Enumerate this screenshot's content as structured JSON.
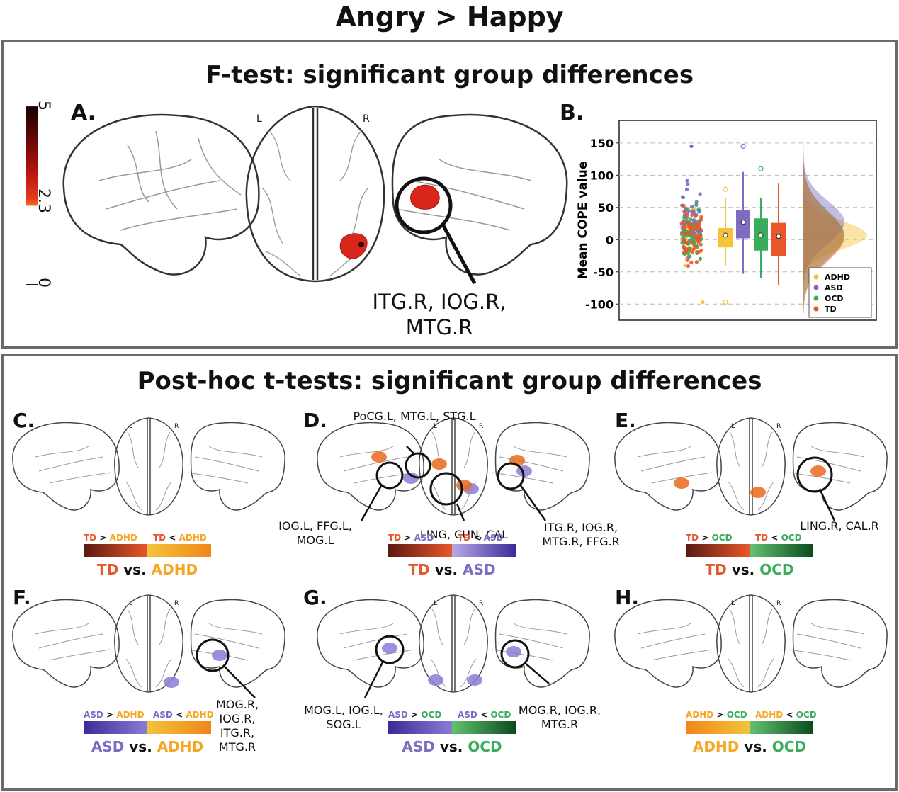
{
  "main_title": "Angry > Happy",
  "top_panel": {
    "title": "F-test: significant group differences",
    "letter_a": "A.",
    "letter_b": "B.",
    "colorbar_ticks": [
      "5",
      "2.3",
      "0"
    ],
    "hemi_left": "L",
    "hemi_right": "R",
    "region_label": [
      "ITG.R, IOG.R,",
      "MTG.R"
    ]
  },
  "chart_data": {
    "type": "scatter",
    "ylabel": "Mean COPE value",
    "yticks": [
      150,
      100,
      50,
      0,
      -50,
      -100
    ],
    "ylim": [
      -125,
      185
    ],
    "grid": "dashed horizontal",
    "legend_position": "bottom-right",
    "series": [
      {
        "name": "ADHD",
        "color": "#f5c33b",
        "median": 7,
        "q1": -12,
        "q3": 18,
        "whisker_low": -40,
        "whisker_high": 65,
        "outliers": [
          78,
          -97
        ]
      },
      {
        "name": "ASD",
        "color": "#7e6bc4",
        "median": 27,
        "q1": 2,
        "q3": 46,
        "whisker_low": -53,
        "whisker_high": 105,
        "outliers": [
          145
        ]
      },
      {
        "name": "OCD",
        "color": "#3aad5c",
        "median": 7,
        "q1": -17,
        "q3": 33,
        "whisker_low": -60,
        "whisker_high": 65,
        "outliers": [
          110
        ]
      },
      {
        "name": "TD",
        "color": "#e8572a",
        "median": 5,
        "q1": -25,
        "q3": 26,
        "whisker_low": -70,
        "whisker_high": 88,
        "outliers": []
      }
    ]
  },
  "bottom_panel": {
    "title": "Post-hoc t-tests: significant group differences",
    "hemi_left": "L",
    "hemi_right": "R",
    "panels": [
      {
        "letter": "C.",
        "legend_left": [
          "TD",
          " > ",
          "ADHD"
        ],
        "legend_right": [
          "TD",
          " < ",
          "ADHD"
        ],
        "vs": [
          "TD",
          " vs. ",
          "ADHD"
        ]
      },
      {
        "letter": "D.",
        "legend_left": [
          "TD",
          " > ",
          "ASD"
        ],
        "legend_right": [
          "TD",
          " < ",
          "ASD"
        ],
        "vs": [
          "TD",
          " vs. ",
          "ASD"
        ],
        "labels": [
          "PoCG.L, MTG.L, STG.L",
          "IOG.L, FFG.L,",
          "MOG.L",
          "LING, CUN, CAL",
          "ITG.R, IOG.R,",
          "MTG.R, FFG.R"
        ]
      },
      {
        "letter": "E.",
        "legend_left": [
          "TD",
          " > ",
          "OCD"
        ],
        "legend_right": [
          "TD",
          " < ",
          "OCD"
        ],
        "vs": [
          "TD",
          " vs. ",
          "OCD"
        ],
        "labels": [
          "LING.R, CAL.R"
        ]
      },
      {
        "letter": "F.",
        "legend_left": [
          "ASD",
          " > ",
          "ADHD"
        ],
        "legend_right": [
          "ASD",
          " < ",
          "ADHD"
        ],
        "vs": [
          "ASD",
          " vs. ",
          "ADHD"
        ],
        "labels": [
          "MOG.R,",
          "IOG.R,",
          "ITG.R,",
          "MTG.R"
        ]
      },
      {
        "letter": "G.",
        "legend_left": [
          "ASD",
          " > ",
          "OCD"
        ],
        "legend_right": [
          "ASD",
          " < ",
          "OCD"
        ],
        "vs": [
          "ASD",
          " vs. ",
          "OCD"
        ],
        "labels": [
          "MOG.L, IOG.L,",
          "SOG.L",
          "MOG.R, IOG.R,",
          "MTG.R"
        ]
      },
      {
        "letter": "H.",
        "legend_left": [
          "ADHD",
          " > ",
          "OCD"
        ],
        "legend_right": [
          "ADHD",
          " < ",
          "OCD"
        ],
        "vs": [
          "ADHD",
          " vs. ",
          "OCD"
        ]
      }
    ]
  },
  "colors": {
    "TD": "#e8572a",
    "ADHD": "#f5a623",
    "ASD": "#7e6bc4",
    "OCD": "#3aad5c"
  }
}
